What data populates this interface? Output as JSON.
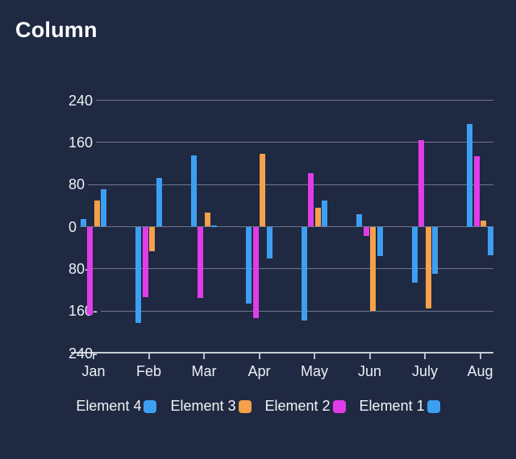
{
  "title": "Column",
  "colors": {
    "background": "#1F2942",
    "blue": "#3D9FF2",
    "orange": "#F5A04A",
    "magenta": "#E03CE8",
    "grid": "rgba(222,229,242,0.42)",
    "axis": "#C7CCD7",
    "text": "#EDF0F6",
    "title_text": "#FDFEFF"
  },
  "chart_data": {
    "type": "bar",
    "title": "Column",
    "categories": [
      "Jan",
      "Feb",
      "Mar",
      "Apr",
      "May",
      "Jun",
      "July",
      "Aug"
    ],
    "series": [
      {
        "name": "Element 4",
        "color": "#3D9FF2",
        "values": [
          14,
          -182,
          136,
          -146,
          -178,
          23,
          -107,
          195
        ]
      },
      {
        "name": "Element 2",
        "color": "#E03CE8",
        "values": [
          -167,
          -133,
          -135,
          -173,
          101,
          -17,
          164,
          134
        ]
      },
      {
        "name": "Element 3",
        "color": "#F5A04A",
        "values": [
          49,
          -47,
          27,
          139,
          36,
          -160,
          -155,
          11
        ]
      },
      {
        "name": "Element 1",
        "color": "#3D9FF2",
        "values": [
          71,
          92,
          3,
          -60,
          49,
          -56,
          -90,
          -54
        ]
      }
    ],
    "series_order_note": "series listed in left-to-right bar order within each month group",
    "legend": [
      {
        "label": "Element 4",
        "color": "#3D9FF2"
      },
      {
        "label": "Element 3",
        "color": "#F5A04A"
      },
      {
        "label": "Element 2",
        "color": "#E03CE8"
      },
      {
        "label": "Element 1",
        "color": "#3D9FF2"
      }
    ],
    "legend_position": "bottom",
    "ylim": [
      -240,
      240
    ],
    "y_tick_values": [
      240,
      160,
      80,
      0,
      -80,
      -160,
      -240
    ],
    "y_tick_labels": [
      "240",
      "160",
      "80",
      "0",
      "80-",
      "160-",
      "240-"
    ],
    "grid": "horizontal",
    "xlabel": "",
    "ylabel": ""
  }
}
